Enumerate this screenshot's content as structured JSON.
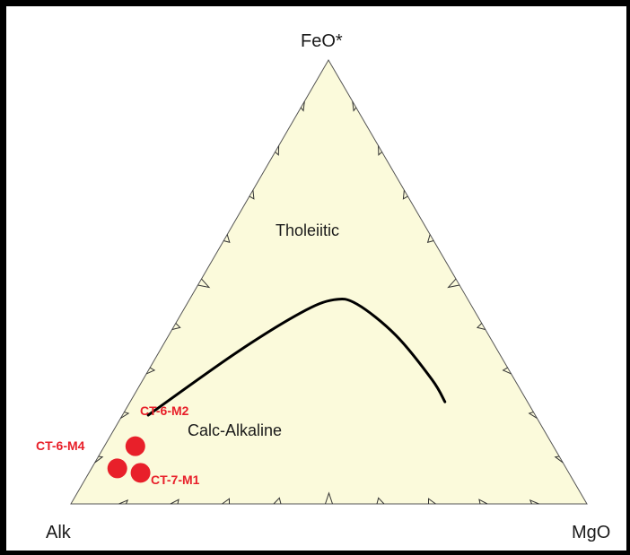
{
  "chart_data": {
    "type": "scatter",
    "diagram": "ternary",
    "title": "",
    "vertices": {
      "top": "FeO*",
      "bottom_left": "Alk",
      "bottom_right": "MgO"
    },
    "fields": [
      {
        "label": "Tholeiitic"
      },
      {
        "label": "Calc-Alkaline"
      }
    ],
    "boundary_curve": [
      {
        "FeO": 20,
        "Alk": 75,
        "MgO": 5
      },
      {
        "FeO": 34,
        "Alk": 51,
        "MgO": 15
      },
      {
        "FeO": 43,
        "Alk": 34,
        "MgO": 23
      },
      {
        "FeO": 46,
        "Alk": 26,
        "MgO": 28
      },
      {
        "FeO": 45,
        "Alk": 22,
        "MgO": 33
      },
      {
        "FeO": 38,
        "Alk": 18,
        "MgO": 44
      },
      {
        "FeO": 28,
        "Alk": 16,
        "MgO": 56
      },
      {
        "FeO": 23,
        "Alk": 16,
        "MgO": 61
      }
    ],
    "points": [
      {
        "label": "CT-6-M2",
        "FeO": 13,
        "Alk": 81,
        "MgO": 6
      },
      {
        "label": "CT-6-M4",
        "FeO": 8,
        "Alk": 87,
        "MgO": 5
      },
      {
        "label": "CT-7-M1",
        "FeO": 7,
        "Alk": 83,
        "MgO": 10
      }
    ],
    "point_color": "#e8202a",
    "fill_color": "#fbfadb",
    "ticks_per_side": 9
  }
}
